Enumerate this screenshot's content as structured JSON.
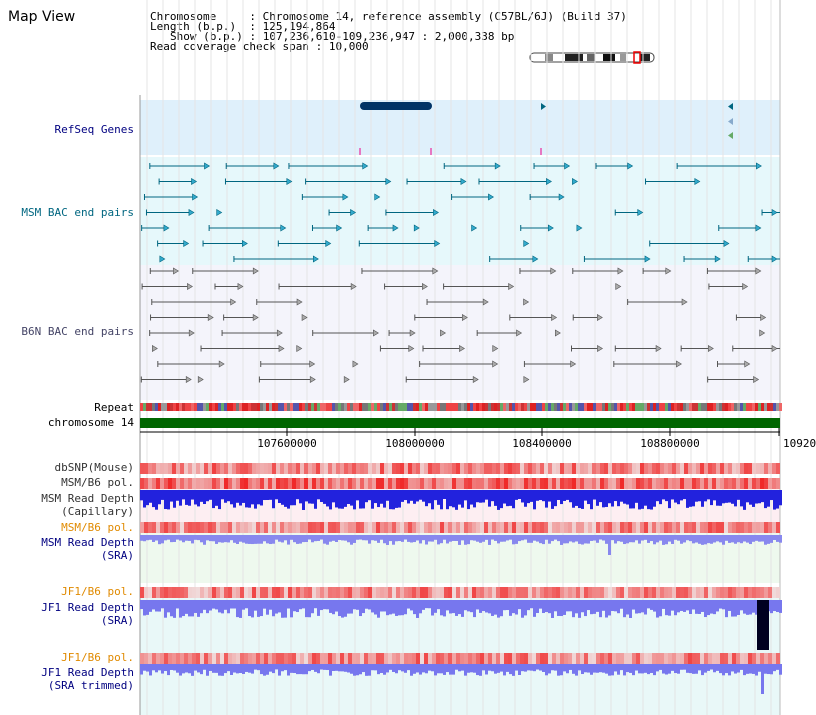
{
  "header": {
    "title": "Map View",
    "chromosome_label": "Chromosome",
    "chromosome_value": "Chromosome 14, reference assembly (C57BL/6J) (Build 37)",
    "length_label": "Length (b.p.)",
    "length_value": "125,194,864",
    "show_label": "Show (b.p.)",
    "show_value": "107,236,610-109,236,947 : 2,000,338 bp",
    "coverage_label": "Read coverage check span",
    "coverage_value": "10,000"
  },
  "tracks": {
    "refseq": "RefSeq Genes",
    "msm_bac": "MSM BAC end pairs",
    "b6n_bac": "B6N BAC end pairs",
    "repeat": "Repeat",
    "chromosome": "chromosome 14",
    "dbsnp": "dbSNP(Mouse)",
    "msm_b6_pol": "MSM/B6 pol.",
    "msm_depth_1": "MSM Read Depth",
    "msm_depth_2": "(Capillary)",
    "msm_b6_pol_2": "MSM/B6 pol.",
    "msm_sra_1": "MSM Read Depth",
    "msm_sra_2": "(SRA)",
    "jf1_pol": "JF1/B6 pol.",
    "jf1_depth_1": "JF1 Read Depth",
    "jf1_depth_2": "(SRA)",
    "jf1_pol_2": "JF1/B6 pol.",
    "jf1_trim_1": "JF1 Read Depth",
    "jf1_trim_2": "(SRA trimmed)"
  },
  "axis": {
    "ticks": [
      "107600000",
      "108000000",
      "108400000",
      "108800000",
      "10920"
    ]
  },
  "colors": {
    "refseq_bg": "#dff0fb",
    "bac_bg": "#e6f8fb",
    "b6n_bg": "#f4f4fb",
    "chromosome": "#006600",
    "navy": "#000080",
    "teal": "#006680",
    "orange": "#e08a00",
    "depth_blue": "#2222dd",
    "depth_light": "#7777ee"
  }
}
